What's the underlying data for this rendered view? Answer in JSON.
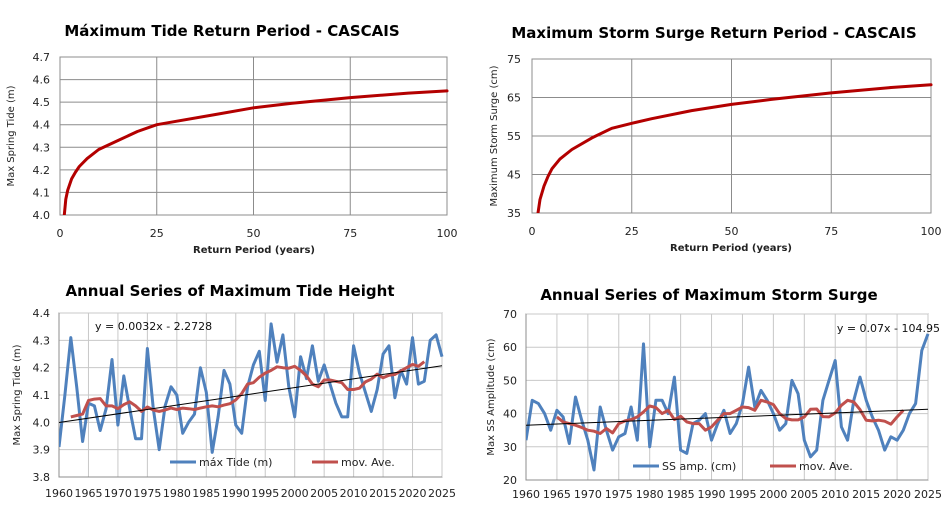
{
  "chart_data": [
    {
      "id": "tide-rp",
      "type": "line",
      "title": "Máximum Tide Return Period - CASCAIS",
      "xlabel": "Return Period (years)",
      "ylabel": "Max Spring Tide (m)",
      "xlim": [
        0,
        100
      ],
      "ylim": [
        4.0,
        4.7
      ],
      "xticks": [
        0,
        25,
        50,
        75,
        100
      ],
      "yticks": [
        "4.0",
        "4.1",
        "4.2",
        "4.3",
        "4.4",
        "4.5",
        "4.6",
        "4.7"
      ],
      "grid": true,
      "color": "#b30000",
      "series": [
        {
          "name": "Return Period",
          "x": [
            1.1,
            1.5,
            2,
            3,
            4,
            5,
            7,
            10,
            15,
            20,
            25,
            30,
            40,
            50,
            60,
            75,
            90,
            100
          ],
          "y": [
            4.0,
            4.07,
            4.11,
            4.16,
            4.19,
            4.215,
            4.25,
            4.29,
            4.33,
            4.37,
            4.4,
            4.415,
            4.445,
            4.475,
            4.495,
            4.52,
            4.54,
            4.55
          ]
        }
      ]
    },
    {
      "id": "surge-rp",
      "type": "line",
      "title": "Maximum Storm Surge Return Period - CASCAIS",
      "xlabel": "Return Period (years)",
      "ylabel": "Maximum Storm Surge (cm)",
      "xlim": [
        0,
        100
      ],
      "ylim": [
        35,
        75
      ],
      "xticks": [
        0,
        25,
        50,
        75,
        100
      ],
      "yticks": [
        "35",
        "45",
        "55",
        "65",
        "75"
      ],
      "grid": true,
      "color": "#b30000",
      "series": [
        {
          "name": "Return Period",
          "x": [
            1.5,
            2,
            3,
            4,
            5,
            7,
            10,
            15,
            20,
            25,
            30,
            40,
            50,
            60,
            75,
            90,
            100
          ],
          "y": [
            35,
            38.5,
            42,
            44.5,
            46.5,
            49,
            51.5,
            54.5,
            57,
            58.3,
            59.5,
            61.6,
            63.2,
            64.5,
            66.2,
            67.6,
            68.3
          ]
        }
      ]
    },
    {
      "id": "tide-annual",
      "type": "line",
      "title": "Annual Series of Maximum Tide Height",
      "xlabel": "",
      "ylabel": "Max Spring Tide (m)",
      "xlim": [
        1960,
        2025
      ],
      "ylim": [
        3.8,
        4.4
      ],
      "xticks": [
        "1960",
        "1965",
        "1970",
        "1975",
        "1980",
        "1985",
        "1990",
        "1995",
        "2000",
        "2005",
        "2010",
        "2015",
        "2020",
        "2025"
      ],
      "yticks": [
        "3.8",
        "3.9",
        "4.0",
        "4.1",
        "4.2",
        "4.3",
        "4.4"
      ],
      "grid": true,
      "legend": "bottom-center",
      "trendline": {
        "label": "y = 0.0032x - 2.2728",
        "slope": 0.0032,
        "intercept": -2.2728
      },
      "series": [
        {
          "name": "máx Tide (m)",
          "color": "#4f81bd",
          "x": [
            1960,
            1961,
            1962,
            1963,
            1964,
            1965,
            1966,
            1967,
            1968,
            1969,
            1970,
            1971,
            1972,
            1973,
            1974,
            1975,
            1976,
            1977,
            1978,
            1979,
            1980,
            1981,
            1982,
            1983,
            1984,
            1985,
            1986,
            1987,
            1988,
            1989,
            1990,
            1991,
            1992,
            1993,
            1994,
            1995,
            1996,
            1997,
            1998,
            1999,
            2000,
            2001,
            2002,
            2003,
            2004,
            2005,
            2006,
            2007,
            2008,
            2009,
            2010,
            2011,
            2012,
            2013,
            2014,
            2015,
            2016,
            2017,
            2018,
            2019,
            2020,
            2021,
            2022,
            2023,
            2024,
            2025
          ],
          "y": [
            3.91,
            4.1,
            4.31,
            4.13,
            3.93,
            4.07,
            4.06,
            3.97,
            4.05,
            4.23,
            3.99,
            4.17,
            4.05,
            3.94,
            3.94,
            4.27,
            4.05,
            3.9,
            4.06,
            4.13,
            4.1,
            3.96,
            4.0,
            4.03,
            4.2,
            4.11,
            3.89,
            4.02,
            4.19,
            4.14,
            3.99,
            3.96,
            4.13,
            4.21,
            4.26,
            4.08,
            4.36,
            4.22,
            4.32,
            4.13,
            4.02,
            4.24,
            4.16,
            4.28,
            4.15,
            4.21,
            4.14,
            4.07,
            4.02,
            4.02,
            4.28,
            4.18,
            4.11,
            4.04,
            4.12,
            4.25,
            4.28,
            4.09,
            4.19,
            4.14,
            4.31,
            4.14,
            4.15,
            4.3,
            4.32,
            4.24
          ]
        },
        {
          "name": "mov. Ave.",
          "color": "#c0504d",
          "x": [
            1962,
            1963,
            1964,
            1965,
            1966,
            1967,
            1968,
            1969,
            1970,
            1971,
            1972,
            1973,
            1974,
            1975,
            1976,
            1977,
            1978,
            1979,
            1980,
            1981,
            1982,
            1983,
            1984,
            1985,
            1986,
            1987,
            1988,
            1989,
            1990,
            1991,
            1992,
            1993,
            1994,
            1995,
            1996,
            1997,
            1998,
            1999,
            2000,
            2001,
            2002,
            2003,
            2004,
            2005,
            2006,
            2007,
            2008,
            2009,
            2010,
            2011,
            2012,
            2013,
            2014,
            2015,
            2016,
            2017,
            2018,
            2019,
            2020,
            2021,
            2022
          ],
          "y": [
            4.02,
            4.025,
            4.03,
            4.08,
            4.085,
            4.087,
            4.06,
            4.06,
            4.05,
            4.065,
            4.075,
            4.06,
            4.04,
            4.056,
            4.045,
            4.04,
            4.045,
            4.052,
            4.047,
            4.052,
            4.05,
            4.047,
            4.052,
            4.057,
            4.06,
            4.057,
            4.063,
            4.068,
            4.082,
            4.105,
            4.14,
            4.145,
            4.165,
            4.18,
            4.19,
            4.203,
            4.2,
            4.198,
            4.205,
            4.19,
            4.17,
            4.14,
            4.13,
            4.155,
            4.155,
            4.15,
            4.145,
            4.12,
            4.12,
            4.125,
            4.148,
            4.158,
            4.176,
            4.163,
            4.172,
            4.175,
            4.188,
            4.2,
            4.212,
            4.205,
            4.222
          ]
        }
      ]
    },
    {
      "id": "surge-annual",
      "type": "line",
      "title": "Annual Series of Maximum Storm Surge",
      "xlabel": "",
      "ylabel": "Max SS Amplitude (cm)",
      "xlim": [
        1960,
        2025
      ],
      "ylim": [
        20,
        70
      ],
      "xticks": [
        "1960",
        "1965",
        "1970",
        "1975",
        "1980",
        "1985",
        "1990",
        "1995",
        "2000",
        "2005",
        "2010",
        "2015",
        "2020",
        "2025"
      ],
      "yticks": [
        "20",
        "30",
        "40",
        "50",
        "60",
        "70"
      ],
      "grid": true,
      "legend": "bottom-center",
      "trendline": {
        "label": "y = 0.07x - 104.95",
        "slope": 0.07,
        "intercept": -104.95,
        "display_start": 36.5,
        "display_end": 41.3
      },
      "series": [
        {
          "name": "SS amp. (cm)",
          "color": "#4f81bd",
          "x": [
            1960,
            1961,
            1962,
            1963,
            1964,
            1965,
            1966,
            1967,
            1968,
            1969,
            1970,
            1971,
            1972,
            1973,
            1974,
            1975,
            1976,
            1977,
            1978,
            1979,
            1980,
            1981,
            1982,
            1983,
            1984,
            1985,
            1986,
            1987,
            1988,
            1989,
            1990,
            1991,
            1992,
            1993,
            1994,
            1995,
            1996,
            1997,
            1998,
            1999,
            2000,
            2001,
            2002,
            2003,
            2004,
            2005,
            2006,
            2007,
            2008,
            2009,
            2010,
            2011,
            2012,
            2013,
            2014,
            2015,
            2016,
            2017,
            2018,
            2019,
            2020,
            2021,
            2022,
            2023,
            2024,
            2025
          ],
          "y": [
            32,
            44,
            43,
            40,
            35,
            41,
            39,
            31,
            45,
            38,
            32,
            23,
            42,
            35,
            29,
            33,
            34,
            42,
            32,
            61,
            30,
            44,
            44,
            40,
            51,
            29,
            28,
            37,
            38,
            40,
            32,
            37,
            41,
            34,
            37,
            43,
            54,
            42,
            47,
            44,
            40,
            35,
            37,
            50,
            46,
            32,
            27,
            29,
            44,
            50,
            56,
            36,
            32,
            44,
            51,
            44,
            39,
            35,
            29,
            33,
            32,
            35,
            40,
            43,
            59,
            64
          ]
        },
        {
          "name": "mov. Ave.",
          "color": "#c0504d",
          "x": [
            1965,
            1966,
            1967,
            1968,
            1969,
            1970,
            1971,
            1972,
            1973,
            1974,
            1975,
            1976,
            1977,
            1978,
            1979,
            1980,
            1981,
            1982,
            1983,
            1984,
            1985,
            1986,
            1987,
            1988,
            1989,
            1990,
            1991,
            1992,
            1993,
            1994,
            1995,
            1996,
            1997,
            1998,
            1999,
            2000,
            2001,
            2002,
            2003,
            2004,
            2005,
            2006,
            2007,
            2008,
            2009,
            2010,
            2011,
            2012,
            2013,
            2014,
            2015,
            2016,
            2017,
            2018,
            2019,
            2020,
            2021
          ],
          "y": [
            39,
            37.5,
            37,
            36.5,
            35.8,
            35,
            34.7,
            34,
            35.5,
            34.2,
            37,
            37.8,
            38.2,
            39,
            40.5,
            42.3,
            41.8,
            40,
            41,
            38.2,
            39.2,
            37.5,
            37,
            37,
            35,
            36,
            38,
            40,
            40,
            41,
            42,
            41.8,
            41,
            44,
            43.5,
            42.7,
            40,
            38.5,
            38.1,
            38.1,
            39,
            41.3,
            41.4,
            39.1,
            39,
            40.2,
            42.5,
            44,
            43.5,
            41.2,
            38,
            37.8,
            38,
            37.7,
            36.8,
            39,
            41
          ]
        }
      ]
    }
  ]
}
